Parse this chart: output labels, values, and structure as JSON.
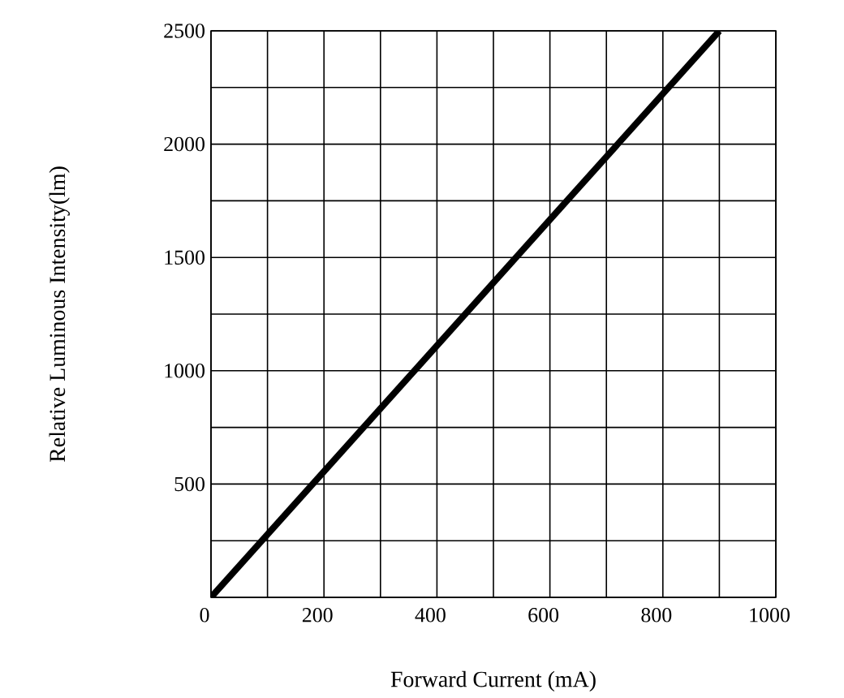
{
  "chart_data": {
    "type": "line",
    "xlabel": "Forward Current (mA)",
    "ylabel": "Relative Luminous Intensity(lm)",
    "x": [
      0,
      900
    ],
    "series": [
      {
        "color": "#000000",
        "values": [
          0,
          2500
        ]
      }
    ],
    "xlim": [
      0,
      1000
    ],
    "ylim": [
      0,
      2500
    ],
    "xticks": [
      0,
      {
        "value": 100,
        "label": null
      },
      200,
      {
        "value": 300,
        "label": null
      },
      400,
      {
        "value": 500,
        "label": null
      },
      600,
      {
        "value": 700,
        "label": null
      },
      800,
      {
        "value": 900,
        "label": null
      },
      1000
    ],
    "yticks": [
      {
        "value": 0,
        "label": null
      },
      {
        "value": 250,
        "label": null
      },
      500,
      {
        "value": 750,
        "label": null
      },
      1000,
      {
        "value": 1250,
        "label": null
      },
      1500,
      {
        "value": 1750,
        "label": null
      },
      2000,
      {
        "value": 2250,
        "label": null
      },
      2500
    ],
    "grid": true,
    "marker": "none",
    "line_style": "solid"
  }
}
